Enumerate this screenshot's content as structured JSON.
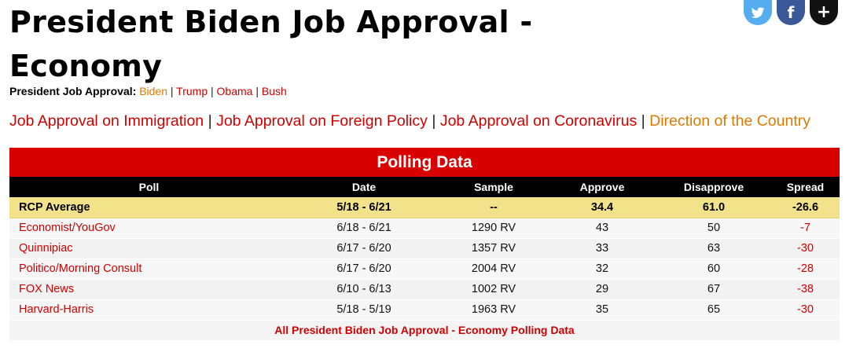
{
  "page": {
    "title": "President Biden Job Approval - Economy"
  },
  "social": {
    "icons": [
      "twitter-icon",
      "facebook-icon",
      "plus-icon"
    ],
    "facebook_glyph": "f",
    "plus_glyph": "+"
  },
  "sub_nav": {
    "label": "President Job Approval:",
    "links": [
      "Biden",
      "Trump",
      "Obama",
      "Bush"
    ],
    "active": "Biden",
    "separator": "|"
  },
  "topic_nav": {
    "links": [
      "Job Approval on Immigration",
      "Job Approval on Foreign Policy",
      "Job Approval on Coronavirus",
      "Direction of the Country"
    ],
    "separator": "|"
  },
  "table": {
    "title": "Polling Data",
    "headers": [
      "Poll",
      "Date",
      "Sample",
      "Approve",
      "Disapprove",
      "Spread"
    ],
    "average": {
      "poll": "RCP Average",
      "date": "5/18 - 6/21",
      "sample": "--",
      "approve": "34.4",
      "disapprove": "61.0",
      "spread": "-26.6"
    },
    "rows": [
      {
        "poll": "Economist/YouGov",
        "date": "6/18 - 6/21",
        "sample": "1290 RV",
        "approve": "43",
        "disapprove": "50",
        "spread": "-7"
      },
      {
        "poll": "Quinnipiac",
        "date": "6/17 - 6/20",
        "sample": "1357 RV",
        "approve": "33",
        "disapprove": "63",
        "spread": "-30"
      },
      {
        "poll": "Politico/Morning Consult",
        "date": "6/17 - 6/20",
        "sample": "2004 RV",
        "approve": "32",
        "disapprove": "60",
        "spread": "-28"
      },
      {
        "poll": "FOX News",
        "date": "6/10 - 6/13",
        "sample": "1002 RV",
        "approve": "29",
        "disapprove": "67",
        "spread": "-38"
      },
      {
        "poll": "Harvard-Harris",
        "date": "5/18 - 5/19",
        "sample": "1963 RV",
        "approve": "35",
        "disapprove": "65",
        "spread": "-30"
      }
    ],
    "footer_link": "All President Biden Job Approval - Economy Polling Data"
  },
  "colors": {
    "link_red": "#d10000",
    "active_orange": "#e07800",
    "title_bar": "#d90000",
    "average_row": "#f2e28a",
    "twitter": "#55acee",
    "facebook": "#3b5998"
  }
}
